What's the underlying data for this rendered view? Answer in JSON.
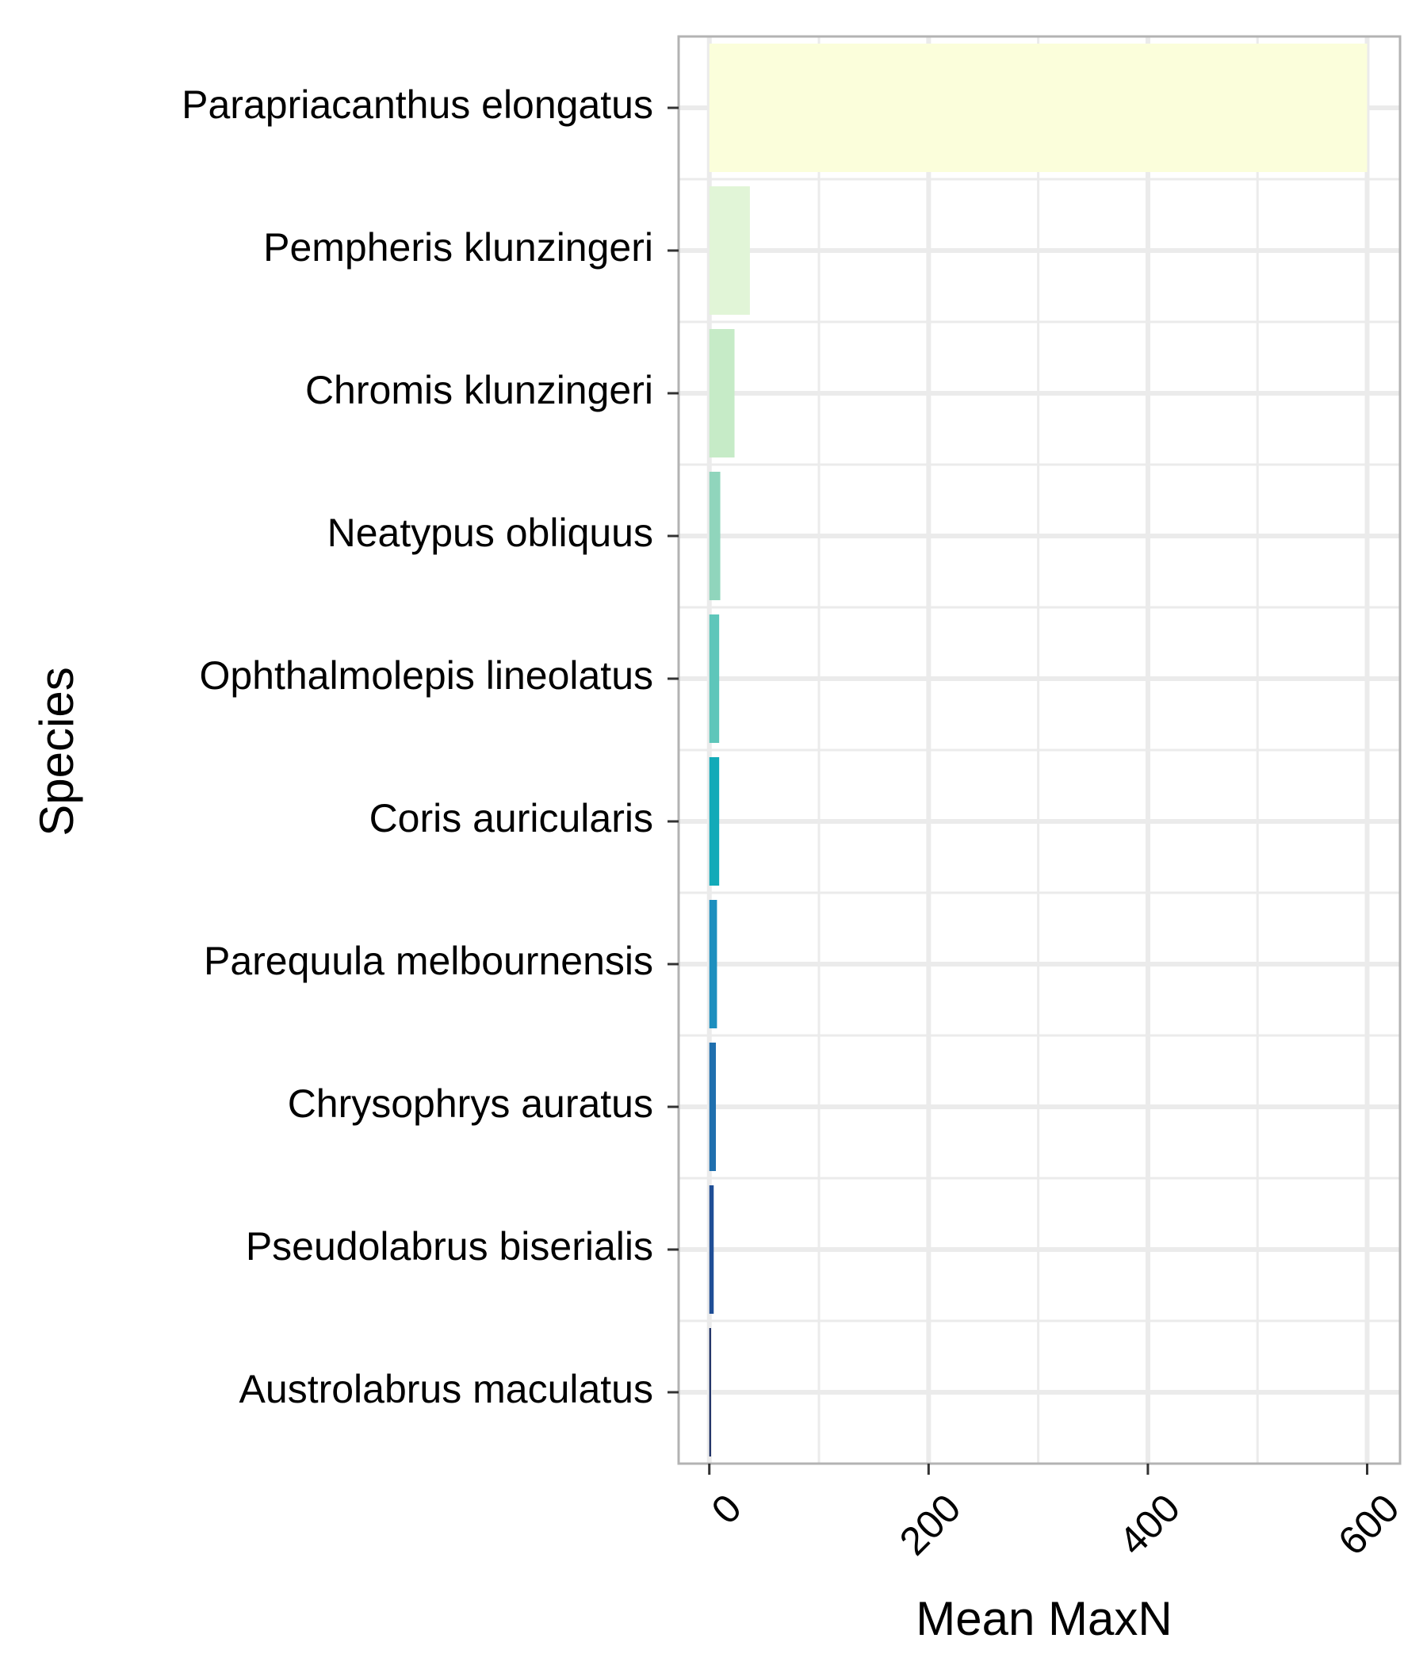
{
  "chart_data": {
    "type": "bar",
    "orientation": "horizontal",
    "xlabel": "Mean MaxN",
    "ylabel": "Species",
    "xlim": [
      -28,
      630
    ],
    "x_ticks": [
      0,
      200,
      400,
      600
    ],
    "x_tick_labels": [
      "0",
      "200",
      "400",
      "600"
    ],
    "x_minor_ticks": [
      100,
      300,
      500
    ],
    "grid": true,
    "legend": "none",
    "categories": [
      "Austrolabrus maculatus",
      "Pseudolabrus biserialis",
      "Chrysophrys auratus",
      "Parequula melbournensis",
      "Coris auricularis",
      "Ophthalmolepis lineolatus",
      "Neatypus obliquus",
      "Chromis klunzingeri",
      "Pempheris klunzingeri",
      "Parapriacanthus elongatus"
    ],
    "values": [
      1.5,
      4,
      6,
      7,
      9,
      9,
      10,
      23,
      37,
      600
    ],
    "colors": [
      "#081d58",
      "#1f4e96",
      "#1f6fae",
      "#1d8fbf",
      "#12aab8",
      "#5ec6ba",
      "#90d5bc",
      "#c6ebc7",
      "#e1f5d7",
      "#fbfedb"
    ]
  }
}
